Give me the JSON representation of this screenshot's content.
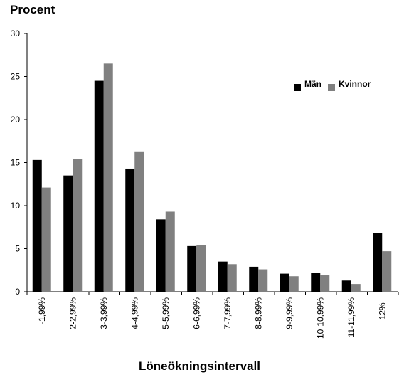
{
  "chart_data": {
    "type": "bar",
    "ylabel": "Procent",
    "xlabel": "Löneökningsintervall",
    "ylim": [
      0,
      30
    ],
    "yticks": [
      "0",
      "5",
      "10",
      "15",
      "20",
      "25",
      "30"
    ],
    "categories": [
      "-1,99%",
      "2-2,99%",
      "3-3,99%",
      "4-4,99%",
      "5-5,99%",
      "6-6,99%",
      "7-7,99%",
      "8-8,99%",
      "9-9,99%",
      "10-10,99%",
      "11-11,99%",
      "12% -"
    ],
    "series": [
      {
        "name": "Män",
        "color": "#000000",
        "values": [
          15.3,
          13.5,
          24.5,
          14.3,
          8.4,
          5.3,
          3.5,
          2.9,
          2.1,
          2.2,
          1.3,
          6.8
        ]
      },
      {
        "name": "Kvinnor",
        "color": "#808080",
        "values": [
          12.1,
          15.4,
          26.5,
          16.3,
          9.3,
          5.4,
          3.2,
          2.6,
          1.8,
          1.9,
          0.9,
          4.7
        ]
      }
    ],
    "legend_position": "top-right",
    "grid": false
  }
}
